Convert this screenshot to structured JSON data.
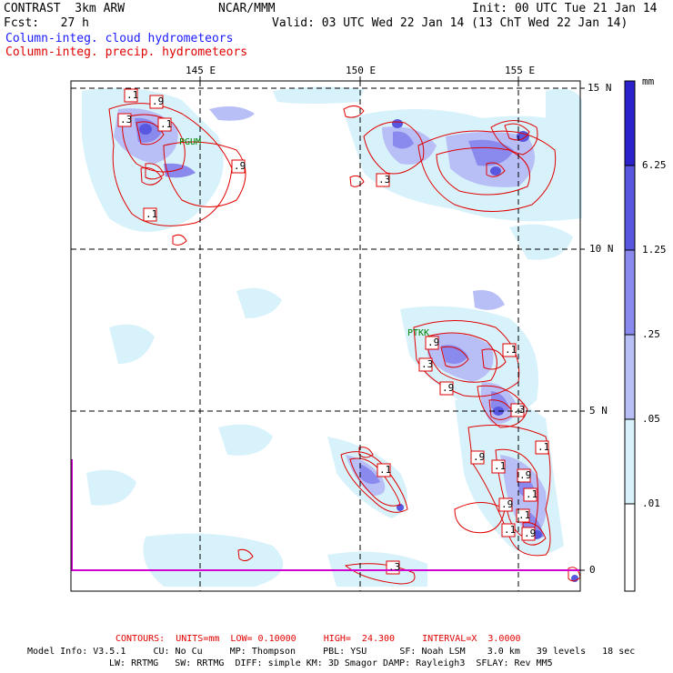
{
  "header": {
    "model": "CONTRAST  3km ARW",
    "center": "NCAR/MMM",
    "init": "Init: 00 UTC Tue 21 Jan 14",
    "fcst": "Fcst:   27 h",
    "valid": "Valid: 03 UTC Wed 22 Jan 14 (13 ChT Wed 22 Jan 14)",
    "field1": "Column-integ. cloud hydrometeors",
    "field2": "Column-integ. precip. hydrometeors"
  },
  "map": {
    "lon_labels": [
      "145 E",
      "150 E",
      "155 E"
    ],
    "lat_labels": [
      "15 N",
      "10 N",
      "5 N",
      "0"
    ],
    "stations": [
      "PGUM",
      "PTKK"
    ],
    "contour_labels": [
      ".1",
      ".9",
      ".3",
      ".1",
      ".3",
      ".9",
      ".1",
      ".3",
      ".9",
      ".1",
      ".9",
      ".3",
      ".1",
      ".9",
      ".1",
      ".1",
      ".9",
      ".1",
      ".9",
      ".1",
      ".1",
      ".9",
      ".3"
    ]
  },
  "colorbar": {
    "unit": "mm",
    "levels": [
      "6.25",
      "1.25",
      ".25",
      ".05",
      ".01"
    ],
    "colors": [
      "#2b22cc",
      "#5757e0",
      "#8a8aee",
      "#b8bef6",
      "#d8f2fb",
      "#ffffff"
    ]
  },
  "footer": {
    "contours": "CONTOURS:  UNITS=mm  LOW= 0.10000     HIGH=  24.300     INTERVAL=X  3.0000",
    "line1": "Model Info: V3.5.1     CU: No Cu     MP: Thompson     PBL: YSU      SF: Noah LSM    3.0 km   39 levels   18 sec",
    "line2": "LW: RRTMG   SW: RRTMG  DIFF: simple KM: 3D Smagor DAMP: Rayleigh3  SFLAY: Rev MM5"
  }
}
